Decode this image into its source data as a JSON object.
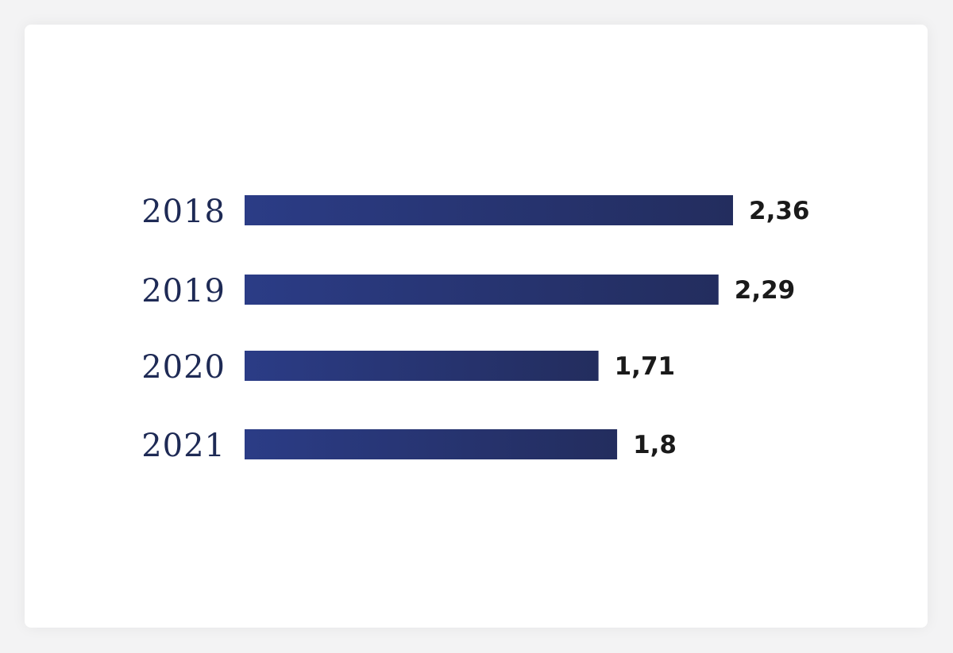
{
  "chart_data": {
    "type": "bar",
    "orientation": "horizontal",
    "categories": [
      "2018",
      "2019",
      "2020",
      "2021"
    ],
    "values": [
      2.36,
      2.29,
      1.71,
      1.8
    ],
    "value_labels": [
      "2,36",
      "2,29",
      "1,71",
      "1,8"
    ],
    "xlim": [
      0,
      2.36
    ],
    "grid": false,
    "colors": {
      "bar_start": "#2b3c86",
      "bar_end": "#232d5e",
      "category_text": "#1e2a55",
      "value_text": "#1a1a1a"
    }
  }
}
